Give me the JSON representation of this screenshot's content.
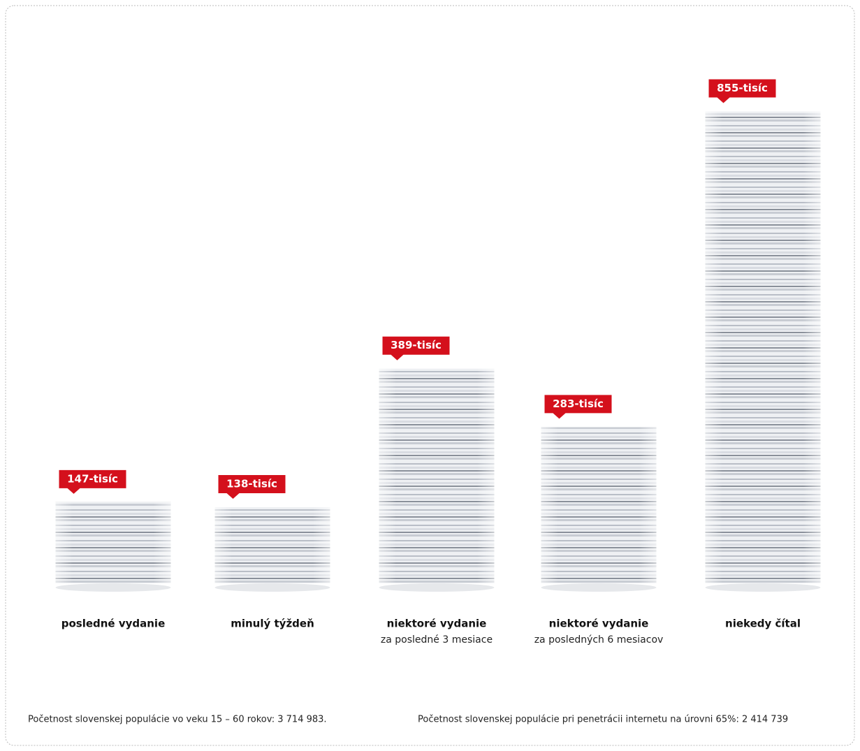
{
  "chart_data": {
    "type": "bar",
    "categories": [
      "posledné vydanie",
      "minulý týždeň",
      "niektoré vydanie",
      "niektoré vydanie",
      "niekedy čítal"
    ],
    "subcategories": [
      null,
      null,
      "za posledné 3 mesiace",
      "za posledných 6 mesiacov",
      null
    ],
    "values": [
      147,
      138,
      389,
      283,
      855
    ],
    "value_labels": [
      "147-tisíc",
      "138-tisíc",
      "389-tisíc",
      "283-tisíc",
      "855-tisíc"
    ],
    "label_color": "#d4101c",
    "notes": [
      "Početnost slovenskej populácie vo veku 15 – 60 rokov: 3 714 983.",
      "Početnost slovenskej populácie pri penetrácii internetu na úrovni 65%: 2 414 739"
    ]
  }
}
